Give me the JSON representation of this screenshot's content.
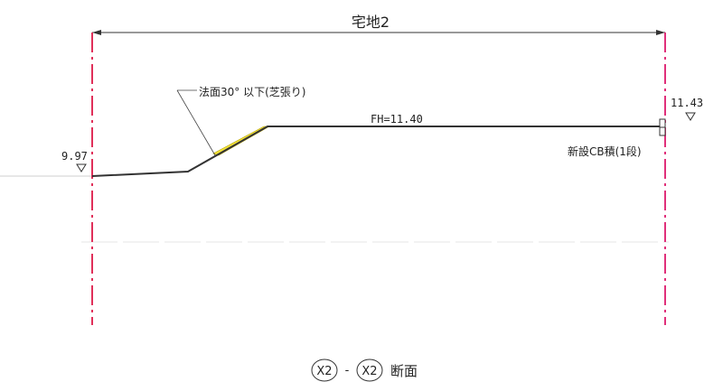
{
  "drawing": {
    "lot_label": "宅地2",
    "slope_note": "法面30° 以下(芝張り)",
    "fh_label": "FH=11.40",
    "left_level": "9.97",
    "right_level": "11.43",
    "wall_note": "新設CB積(1段)",
    "section_mark_1": "X2",
    "section_mark_2": "X2",
    "section_dash": "-",
    "section_suffix": "断面"
  },
  "colors": {
    "left_boundary": "#e0305a",
    "right_boundary": "#e0307a",
    "ground_line": "#333333",
    "slope_fill": "#f2e23a"
  },
  "icons": {
    "level_marker": "downward-triangle-icon"
  }
}
